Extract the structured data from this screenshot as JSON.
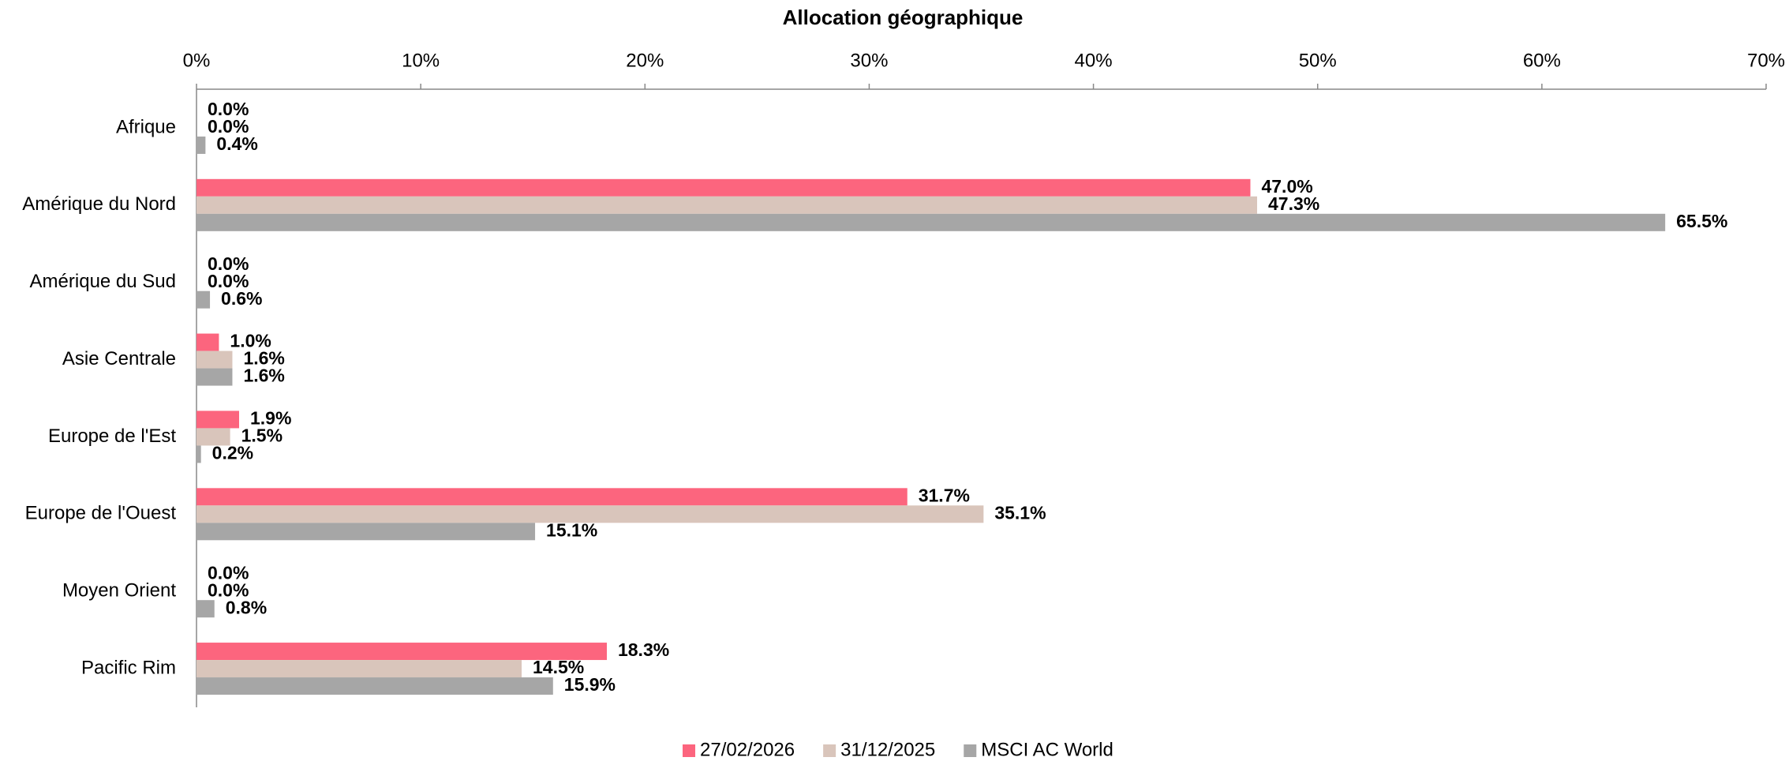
{
  "chart_data": {
    "type": "hbar",
    "title": "Allocation géographique",
    "categories": [
      "Afrique",
      "Amérique du Nord",
      "Amérique du Sud",
      "Asie Centrale",
      "Europe de l'Est",
      "Europe de l'Ouest",
      "Moyen Orient",
      "Pacific Rim"
    ],
    "series": [
      {
        "name": "27/02/2026",
        "color": "#fc657e",
        "values": [
          0.0,
          47.0,
          0.0,
          1.0,
          1.9,
          31.7,
          0.0,
          18.3
        ],
        "value_labels": [
          "0.0%",
          "47.0%",
          "0.0%",
          "1.0%",
          "1.9%",
          "31.7%",
          "0.0%",
          "18.3%"
        ]
      },
      {
        "name": "31/12/2025",
        "color": "#d9c5bb",
        "values": [
          0.0,
          47.3,
          0.0,
          1.6,
          1.5,
          35.1,
          0.0,
          14.5
        ],
        "value_labels": [
          "0.0%",
          "47.3%",
          "0.0%",
          "1.6%",
          "1.5%",
          "35.1%",
          "0.0%",
          "14.5%"
        ]
      },
      {
        "name": "MSCI AC World",
        "color": "#a6a6a6",
        "values": [
          0.4,
          65.5,
          0.6,
          1.6,
          0.2,
          15.1,
          0.8,
          15.9
        ],
        "value_labels": [
          "0.4%",
          "65.5%",
          "0.6%",
          "1.6%",
          "0.2%",
          "15.1%",
          "0.8%",
          "15.9%"
        ]
      }
    ],
    "xlim": [
      0,
      70
    ],
    "xticks": [
      {
        "value": 0,
        "label": "0%"
      },
      {
        "value": 10,
        "label": "10%"
      },
      {
        "value": 20,
        "label": "20%"
      },
      {
        "value": 30,
        "label": "30%"
      },
      {
        "value": 40,
        "label": "40%"
      },
      {
        "value": 50,
        "label": "50%"
      },
      {
        "value": 60,
        "label": "60%"
      },
      {
        "value": 70,
        "label": "70%"
      }
    ],
    "grid": false,
    "legend": "bottom"
  }
}
